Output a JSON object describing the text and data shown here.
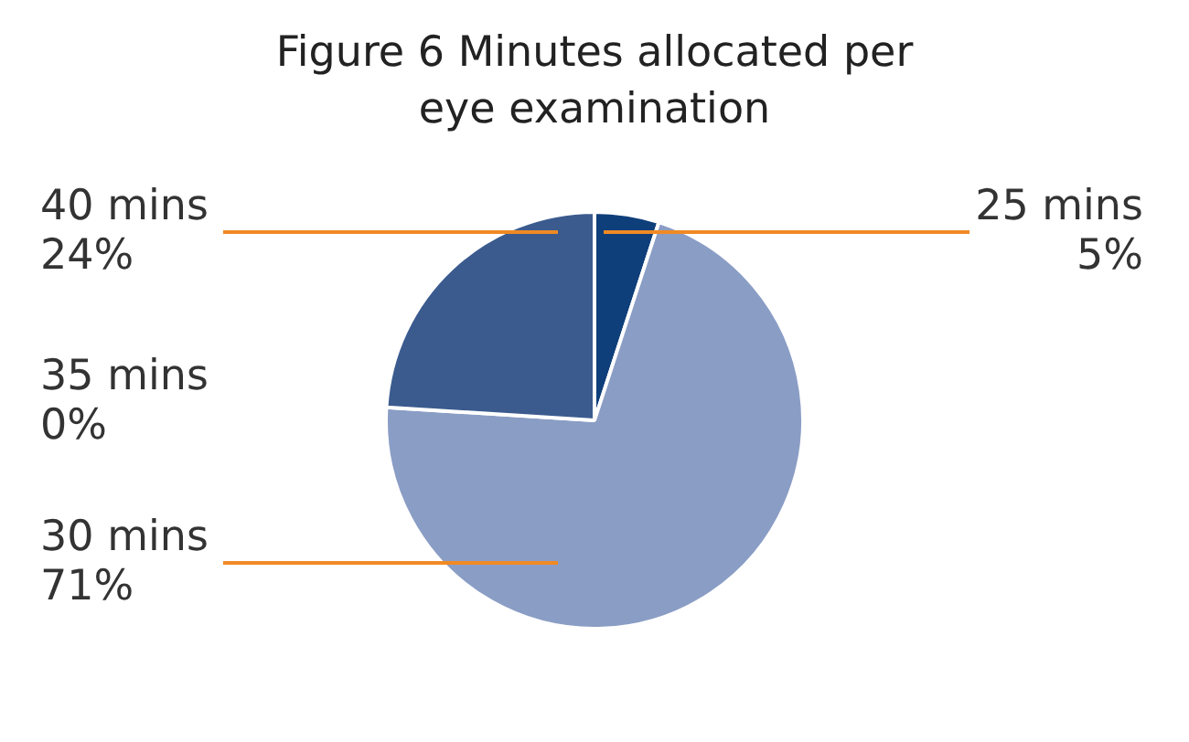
{
  "chart_data": {
    "type": "pie",
    "title": "Figure 6 Minutes allocated per eye examination",
    "categories": [
      "25 mins",
      "30 mins",
      "35 mins",
      "40 mins"
    ],
    "values": [
      5,
      71,
      0,
      24
    ],
    "colors": [
      "#0f3f7a",
      "#8a9dc5",
      "#5c6f9e",
      "#3b5b8f"
    ],
    "value_labels": [
      "5%",
      "71%",
      "0%",
      "24%"
    ],
    "legend": false
  }
}
